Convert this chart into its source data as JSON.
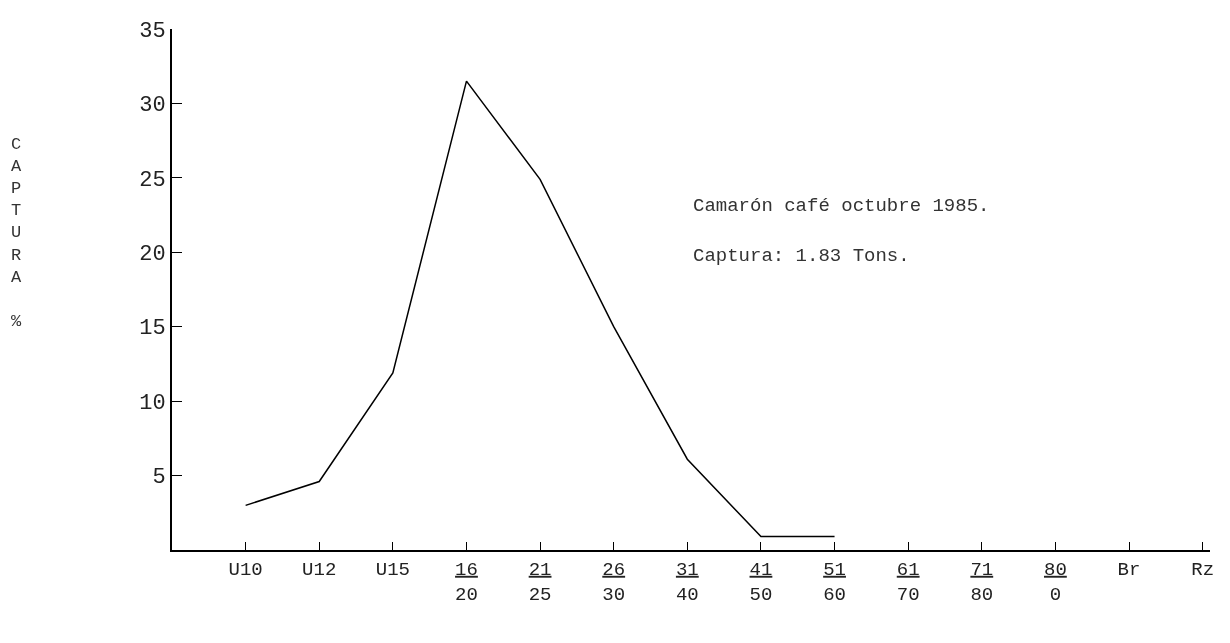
{
  "chart_data": {
    "type": "line",
    "categories": [
      "U10",
      "U12",
      "U15",
      "16\n20",
      "21\n25",
      "26\n30",
      "31\n40",
      "41\n50",
      "51\n60",
      "61\n70",
      "71\n80",
      "80\n0",
      "Br",
      "Rz"
    ],
    "series": [
      {
        "color": "#000000",
        "values": [
          3.0,
          4.6,
          11.9,
          31.5,
          24.9,
          15.0,
          6.1,
          0.9,
          0.9,
          null,
          null,
          null,
          null,
          null
        ]
      }
    ],
    "ylabel": "CAPTURA %",
    "ylim": [
      0,
      35
    ],
    "yticks": [
      5,
      10,
      15,
      20,
      25,
      30,
      35
    ],
    "annotations": [
      "Camarón café octubre 1985.",
      "Captura: 1.83 Tons."
    ],
    "marker": "none",
    "line_style": "solid"
  }
}
